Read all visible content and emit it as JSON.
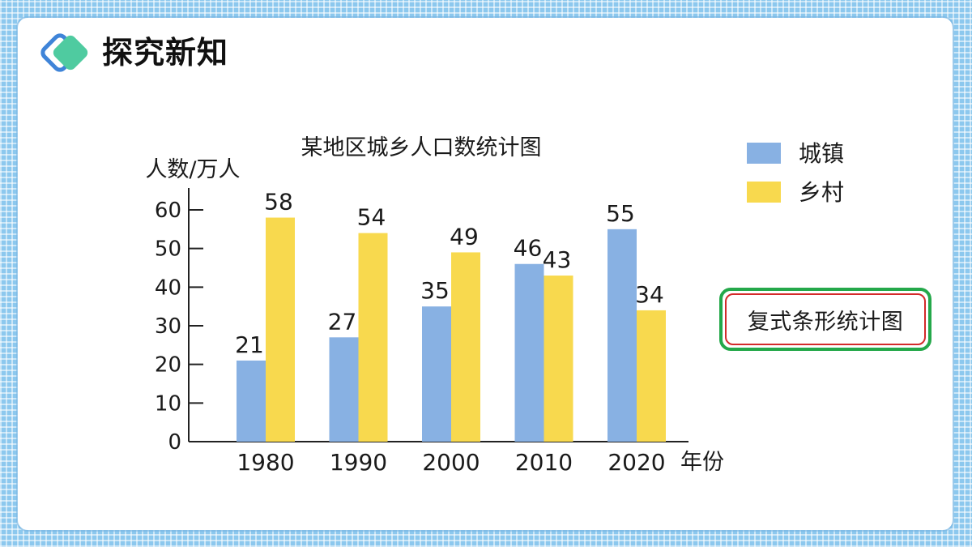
{
  "header": {
    "title": "探究新知",
    "logo_icon": "double-diamond-icon",
    "logo_colors": [
      "#3f84d8",
      "#4fcba0"
    ]
  },
  "note": {
    "text": "复式条形统计图",
    "border_outer": "#24a84a",
    "border_inner": "#d32a2a"
  },
  "chart_data": {
    "type": "bar",
    "title": "某地区城乡人口数统计图",
    "xlabel": "年份",
    "ylabel": "人数/万人",
    "categories": [
      "1980",
      "1990",
      "2000",
      "2010",
      "2020"
    ],
    "ylim": [
      0,
      60
    ],
    "yticks": [
      "0",
      "10",
      "20",
      "30",
      "40",
      "50",
      "60"
    ],
    "grid": false,
    "legend_position": "top-right",
    "series": [
      {
        "name": "城镇",
        "color": "#88b1e3",
        "values": [
          21,
          27,
          35,
          46,
          55
        ]
      },
      {
        "name": "乡村",
        "color": "#f8d94e",
        "values": [
          58,
          54,
          49,
          43,
          34
        ]
      }
    ]
  }
}
